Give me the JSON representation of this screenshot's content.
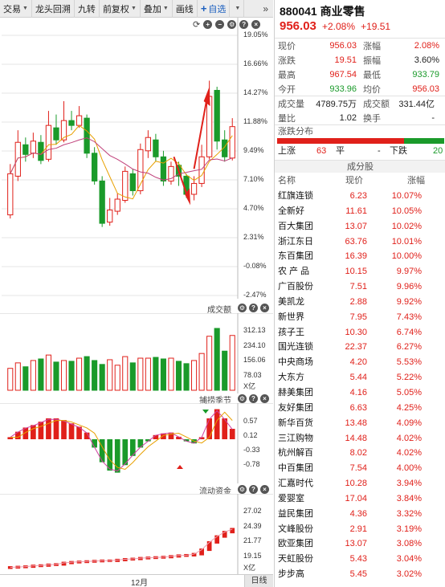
{
  "toolbar": {
    "items": [
      "交易",
      "龙头回溯",
      "九转",
      "前复权",
      "叠加",
      "画线"
    ],
    "add_watch": "自选",
    "more": "»"
  },
  "main_chart": {
    "y_labels": [
      "19.05%",
      "16.66%",
      "14.27%",
      "11.88%",
      "9.49%",
      "7.10%",
      "4.70%",
      "2.31%",
      "-0.08%",
      "-2.47%"
    ],
    "candles": [
      {
        "o": 4.2,
        "c": 7.6,
        "h": 8.4,
        "l": 3.9
      },
      {
        "o": 7.4,
        "c": 10.2,
        "h": 11.2,
        "l": 7.0
      },
      {
        "o": 10.0,
        "c": 9.2,
        "h": 10.6,
        "l": 8.6
      },
      {
        "o": 9.3,
        "c": 10.3,
        "h": 11.0,
        "l": 8.9
      },
      {
        "o": 10.2,
        "c": 8.7,
        "h": 10.8,
        "l": 8.4
      },
      {
        "o": 8.8,
        "c": 11.6,
        "h": 12.8,
        "l": 8.6
      },
      {
        "o": 11.4,
        "c": 10.4,
        "h": 12.5,
        "l": 10.0
      },
      {
        "o": 10.4,
        "c": 12.0,
        "h": 13.6,
        "l": 10.2
      },
      {
        "o": 12.0,
        "c": 11.6,
        "h": 12.8,
        "l": 11.2
      },
      {
        "o": 11.6,
        "c": 12.4,
        "h": 13.2,
        "l": 11.4
      },
      {
        "o": 12.2,
        "c": 9.3,
        "h": 12.5,
        "l": 8.9
      },
      {
        "o": 9.3,
        "c": 7.0,
        "h": 9.8,
        "l": 6.7
      },
      {
        "o": 7.0,
        "c": 3.5,
        "h": 7.4,
        "l": 3.2
      },
      {
        "o": 3.6,
        "c": 4.6,
        "h": 5.6,
        "l": 3.3
      },
      {
        "o": 4.5,
        "c": 5.5,
        "h": 6.0,
        "l": 4.2
      },
      {
        "o": 5.4,
        "c": 7.8,
        "h": 8.2,
        "l": 5.2
      },
      {
        "o": 7.6,
        "c": 6.2,
        "h": 8.0,
        "l": 5.8
      },
      {
        "o": 6.2,
        "c": 9.6,
        "h": 10.1,
        "l": 5.9
      },
      {
        "o": 9.5,
        "c": 10.6,
        "h": 11.2,
        "l": 8.9
      },
      {
        "o": 10.4,
        "c": 9.0,
        "h": 10.9,
        "l": 8.6
      },
      {
        "o": 9.0,
        "c": 7.0,
        "h": 9.5,
        "l": 6.6
      },
      {
        "o": 7.0,
        "c": 8.2,
        "h": 8.6,
        "l": 6.7
      },
      {
        "o": 8.3,
        "c": 7.4,
        "h": 8.6,
        "l": 6.6
      },
      {
        "o": 7.4,
        "c": 5.9,
        "h": 7.6,
        "l": 5.6
      },
      {
        "o": 5.9,
        "c": 6.8,
        "h": 7.4,
        "l": 5.4
      },
      {
        "o": 6.8,
        "c": 9.0,
        "h": 10.0,
        "l": 6.5
      },
      {
        "o": 9.0,
        "c": 14.0,
        "h": 15.3,
        "l": 8.8
      },
      {
        "o": 14.5,
        "c": 10.3,
        "h": 14.8,
        "l": 9.6
      },
      {
        "o": 10.4,
        "c": 9.0,
        "h": 11.2,
        "l": 8.6
      },
      {
        "o": 8.9,
        "c": 11.5,
        "h": 12.2,
        "l": 8.7
      }
    ],
    "arrow_color": "#e0201a"
  },
  "volume": {
    "title": "成交额",
    "labels": [
      "312.13",
      "234.10",
      "156.06",
      "78.03"
    ],
    "unit": "X亿",
    "bars": [
      {
        "v": 140,
        "up": true
      },
      {
        "v": 175,
        "up": true
      },
      {
        "v": 150,
        "up": false
      },
      {
        "v": 190,
        "up": true
      },
      {
        "v": 200,
        "up": false
      },
      {
        "v": 225,
        "up": true
      },
      {
        "v": 180,
        "up": false
      },
      {
        "v": 190,
        "up": true
      },
      {
        "v": 185,
        "up": false
      },
      {
        "v": 205,
        "up": true
      },
      {
        "v": 215,
        "up": false
      },
      {
        "v": 190,
        "up": false
      },
      {
        "v": 165,
        "up": false
      },
      {
        "v": 195,
        "up": true
      },
      {
        "v": 160,
        "up": true
      },
      {
        "v": 215,
        "up": true
      },
      {
        "v": 175,
        "up": false
      },
      {
        "v": 205,
        "up": true
      },
      {
        "v": 205,
        "up": true
      },
      {
        "v": 210,
        "up": false
      },
      {
        "v": 200,
        "up": false
      },
      {
        "v": 205,
        "up": true
      },
      {
        "v": 185,
        "up": false
      },
      {
        "v": 170,
        "up": false
      },
      {
        "v": 190,
        "up": true
      },
      {
        "v": 235,
        "up": true
      },
      {
        "v": 345,
        "up": true
      },
      {
        "v": 395,
        "up": false
      },
      {
        "v": 250,
        "up": false
      },
      {
        "v": 350,
        "up": true
      }
    ]
  },
  "macd": {
    "title": "捕捞季节",
    "labels": [
      "0.57",
      "0.12",
      "-0.33",
      "-0.78"
    ],
    "bars": [
      0.05,
      0.18,
      0.28,
      0.34,
      0.42,
      0.5,
      0.5,
      0.46,
      0.38,
      0.3,
      0.16,
      -0.2,
      -0.55,
      -0.75,
      -0.8,
      -0.62,
      -0.4,
      -0.2,
      -0.05,
      0.1,
      0.14,
      0.16,
      0.06,
      -0.05,
      -0.1,
      0.05,
      0.5,
      0.72,
      0.5,
      0.25
    ]
  },
  "flow": {
    "title": "流动资金",
    "labels": [
      "27.02",
      "24.39",
      "21.77",
      "19.15"
    ],
    "unit": "X亿",
    "bars": [
      19.2,
      19.25,
      19.3,
      19.4,
      19.45,
      19.55,
      19.6,
      19.8,
      19.9,
      19.95,
      20.0,
      20.05,
      20.1,
      20.1,
      20.2,
      20.3,
      20.35,
      20.45,
      20.5,
      20.55,
      20.6,
      20.7,
      20.8,
      20.85,
      21.0,
      21.6,
      22.6,
      23.4,
      24.0,
      24.4
    ],
    "month": "12月",
    "period": "日线"
  },
  "stock": {
    "code": "880041",
    "name": "商业零售",
    "price": "956.03",
    "change_pct": "+2.08%",
    "change": "+19.51"
  },
  "quote": {
    "rows": [
      {
        "l1": "现价",
        "v1": "956.03",
        "c1": "red",
        "l2": "涨幅",
        "v2": "2.08%",
        "c2": "red"
      },
      {
        "l1": "涨跌",
        "v1": "19.51",
        "c1": "red",
        "l2": "振幅",
        "v2": "3.60%",
        "c2": "dark"
      },
      {
        "l1": "最高",
        "v1": "967.54",
        "c1": "red",
        "l2": "最低",
        "v2": "933.79",
        "c2": "green"
      },
      {
        "l1": "今开",
        "v1": "933.96",
        "c1": "green",
        "l2": "均价",
        "v2": "956.03",
        "c2": "red"
      }
    ],
    "rows2": [
      {
        "l1": "成交量",
        "v1": "4789.75万",
        "c1": "dark",
        "l2": "成交额",
        "v2": "331.44亿",
        "c2": "dark"
      },
      {
        "l1": "量比",
        "v1": "1.02",
        "c1": "dark",
        "l2": "换手",
        "v2": "-",
        "c2": "dark"
      }
    ]
  },
  "distribution": {
    "title": "涨跌分布",
    "up_label": "上涨",
    "up_count": "63",
    "flat_label": "平",
    "flat_count": "-",
    "down_label": "下跌",
    "down_count": "20",
    "up_ratio": 0.76
  },
  "components": {
    "title": "成分股",
    "headers": [
      "名称",
      "现价",
      "涨幅"
    ],
    "rows": [
      [
        "红旗连锁",
        "6.23",
        "10.07%"
      ],
      [
        "全新好",
        "11.61",
        "10.05%"
      ],
      [
        "百大集团",
        "13.07",
        "10.02%"
      ],
      [
        "浙江东日",
        "63.76",
        "10.01%"
      ],
      [
        "东百集团",
        "16.39",
        "10.00%"
      ],
      [
        "农 产 品",
        "10.15",
        "9.97%"
      ],
      [
        "广百股份",
        "7.51",
        "9.96%"
      ],
      [
        "美凯龙",
        "2.88",
        "9.92%"
      ],
      [
        "新世界",
        "7.95",
        "7.43%"
      ],
      [
        "孩子王",
        "10.30",
        "6.74%"
      ],
      [
        "国光连锁",
        "22.37",
        "6.27%"
      ],
      [
        "中央商场",
        "4.20",
        "5.53%"
      ],
      [
        "大东方",
        "5.44",
        "5.22%"
      ],
      [
        "赫美集团",
        "4.16",
        "5.05%"
      ],
      [
        "友好集团",
        "6.63",
        "4.25%"
      ],
      [
        "新华百货",
        "13.48",
        "4.09%"
      ],
      [
        "三江购物",
        "14.48",
        "4.02%"
      ],
      [
        "杭州解百",
        "8.02",
        "4.02%"
      ],
      [
        "中百集团",
        "7.54",
        "4.00%"
      ],
      [
        "汇嘉时代",
        "10.28",
        "3.94%"
      ],
      [
        "爱婴室",
        "17.04",
        "3.84%"
      ],
      [
        "益民集团",
        "4.36",
        "3.32%"
      ],
      [
        "文峰股份",
        "2.91",
        "3.19%"
      ],
      [
        "欧亚集团",
        "13.07",
        "3.08%"
      ],
      [
        "天虹股份",
        "5.43",
        "3.04%"
      ],
      [
        "步步高",
        "5.45",
        "3.02%"
      ]
    ]
  },
  "colors": {
    "up": "#e0201a",
    "down": "#1a9a2a",
    "ma1": "#e8a000",
    "ma2": "#c0407a"
  }
}
